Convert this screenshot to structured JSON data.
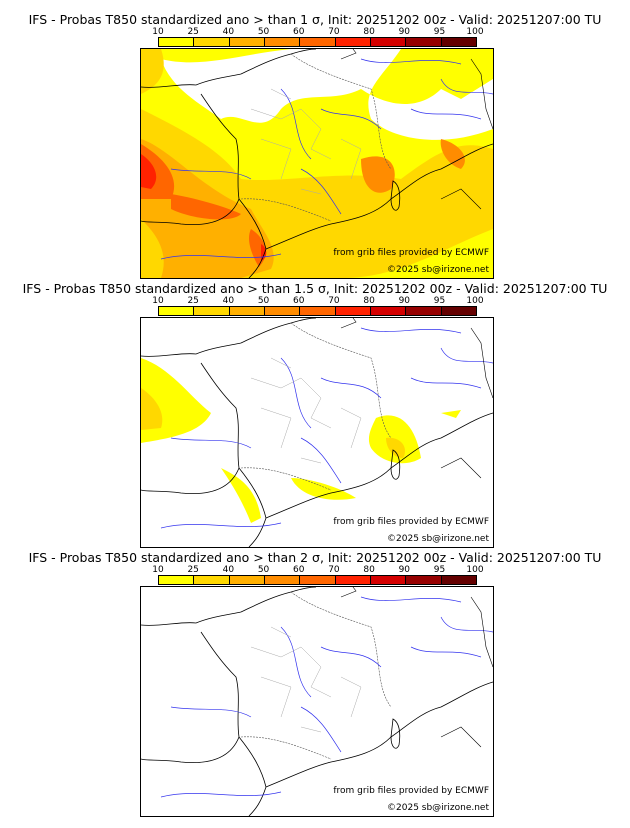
{
  "panels": [
    {
      "title": "IFS - Probas T850  standardized ano > than 1 σ, Init: 20251202 00z - Valid: 20251207:00 TU",
      "threshold": "1 σ",
      "credit_source": "from grib files provided by ECMWF",
      "copyright": "©2025 sb@irizone.net"
    },
    {
      "title": "IFS - Probas T850  standardized ano > than 1.5 σ, Init: 20251202 00z - Valid: 20251207:00 TU",
      "threshold": "1.5 σ",
      "credit_source": "from grib files provided by ECMWF",
      "copyright": "©2025 sb@irizone.net"
    },
    {
      "title": "IFS - Probas T850  standardized ano > than 2 σ, Init: 20251202 00z - Valid: 20251207:00 TU",
      "threshold": "2 σ",
      "credit_source": "from grib files provided by ECMWF",
      "copyright": "©2025 sb@irizone.net"
    }
  ],
  "colorbar": {
    "ticks": [
      "10",
      "25",
      "40",
      "50",
      "60",
      "70",
      "80",
      "90",
      "95",
      "100"
    ],
    "colors": [
      "#ffff00",
      "#ffd800",
      "#ffb000",
      "#ff8c00",
      "#ff6600",
      "#ff2200",
      "#d40000",
      "#960000",
      "#640000"
    ]
  }
}
